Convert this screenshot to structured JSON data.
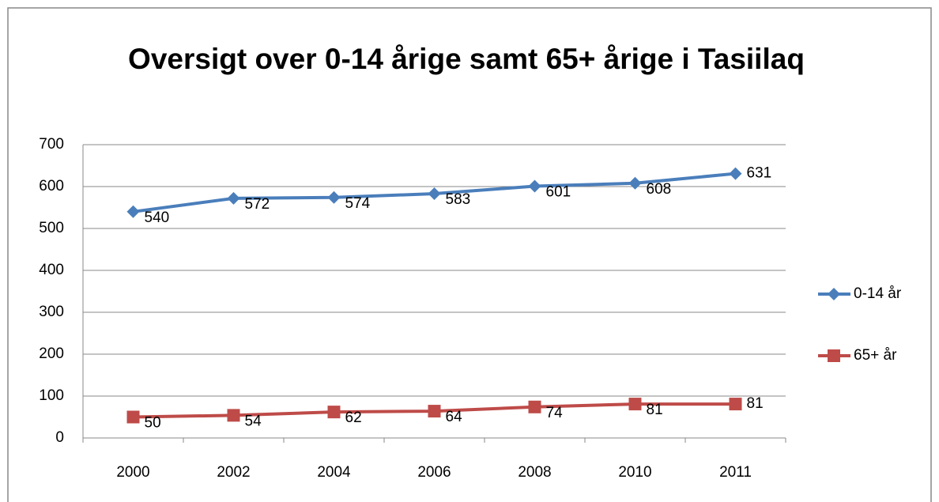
{
  "chart_data": {
    "type": "line",
    "title": "Oversigt over 0-14 årige samt 65+ årige i Tasiilaq",
    "categories": [
      "2000",
      "2002",
      "2004",
      "2006",
      "2008",
      "2010",
      "2011"
    ],
    "series": [
      {
        "name": "0-14 år",
        "color": "#4a7ebb",
        "marker": "diamond",
        "values": [
          540,
          572,
          574,
          583,
          601,
          608,
          631
        ]
      },
      {
        "name": "65+ år",
        "color": "#be4b48",
        "marker": "square",
        "values": [
          50,
          54,
          62,
          64,
          74,
          81,
          81
        ]
      }
    ],
    "ylim": [
      0,
      700
    ],
    "yticks": [
      0,
      100,
      200,
      300,
      400,
      500,
      600,
      700
    ],
    "grid": true,
    "legend": "right"
  }
}
